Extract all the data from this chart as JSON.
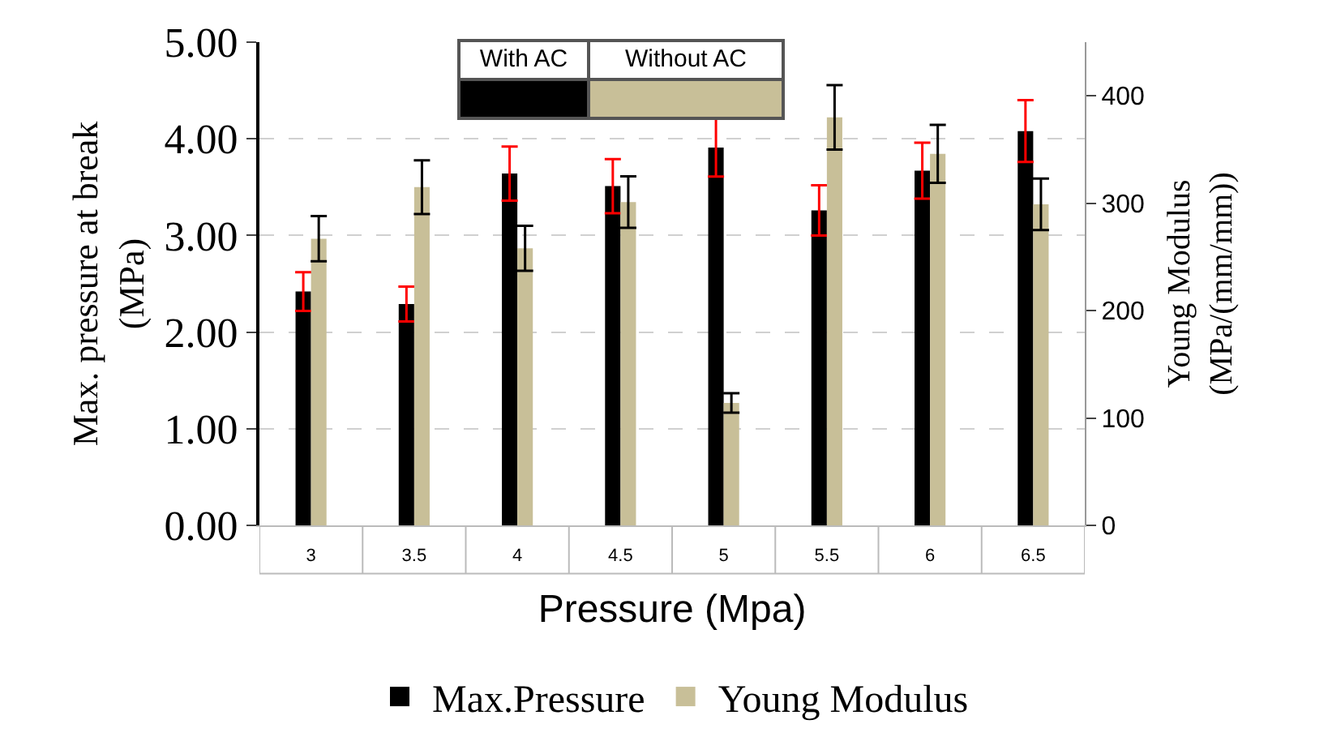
{
  "chart_data": {
    "type": "bar",
    "xlabel": "Pressure (Mpa)",
    "ylabel": "Max. pressure at break\n(MPa)",
    "y2label": "Young Modulus\n(MPa/(mm/mm))",
    "categories": [
      "3",
      "3.5",
      "4",
      "4.5",
      "5",
      "5.5",
      "6",
      "6.5"
    ],
    "series": [
      {
        "name": "Max.Pressure",
        "color": "#000000",
        "values": [
          2.42,
          2.29,
          3.64,
          3.51,
          3.91,
          3.26,
          3.67,
          4.08
        ],
        "errors": [
          0.2,
          0.18,
          0.28,
          0.28,
          0.3,
          0.26,
          0.29,
          0.32
        ]
      },
      {
        "name": "Young Modulus",
        "color": "#c8bf98",
        "axis": "y2",
        "values": [
          267,
          315,
          258,
          301,
          114,
          380,
          346,
          299
        ],
        "errors": [
          21,
          25,
          21,
          24,
          9,
          30,
          27,
          24
        ]
      }
    ],
    "ylim": [
      0,
      5
    ],
    "yticks": [
      {
        "value": 0,
        "label": "0.00"
      },
      {
        "value": 1,
        "label": "1.00"
      },
      {
        "value": 2,
        "label": "2.00"
      },
      {
        "value": 3,
        "label": "3.00"
      },
      {
        "value": 4,
        "label": "4.00"
      },
      {
        "value": 5,
        "label": "5.00"
      }
    ],
    "y2lim": [
      0,
      450
    ],
    "y2ticks": [
      0,
      100,
      200,
      300,
      400
    ],
    "grid": "y",
    "legend": "bottom",
    "annotations": [
      "With AC",
      "Without AC"
    ]
  }
}
